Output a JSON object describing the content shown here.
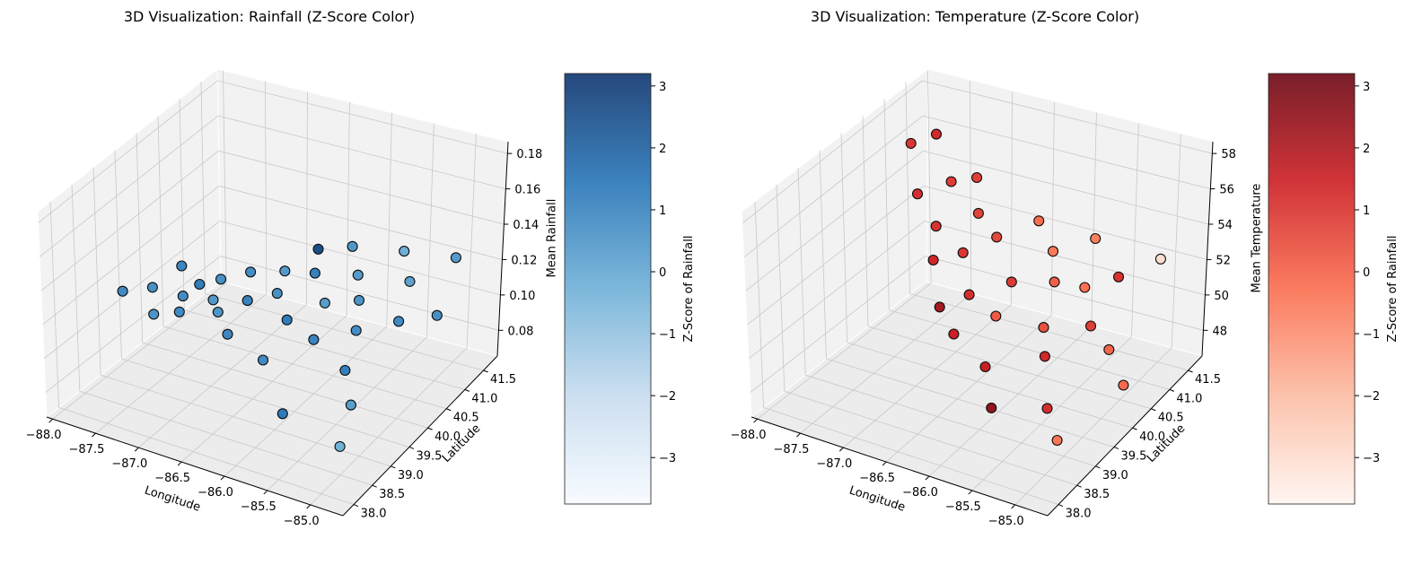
{
  "chart_data": [
    {
      "type": "scatter",
      "title": "3D Visualization: Rainfall (Z-Score Color)",
      "xlabel": "Longitude",
      "ylabel": "Latitude",
      "zlabel": "Mean Rainfall",
      "xticks": [
        "−88.0",
        "−87.5",
        "−87.0",
        "−86.5",
        "−86.0",
        "−85.5",
        "−85.0"
      ],
      "yticks": [
        "38.0",
        "38.5",
        "39.0",
        "39.5",
        "40.0",
        "40.5",
        "41.0",
        "41.5"
      ],
      "zticks": [
        "0.08",
        "0.10",
        "0.12",
        "0.14",
        "0.16",
        "0.18"
      ],
      "xlim": [
        -88.2,
        -84.8
      ],
      "ylim": [
        37.7,
        41.9
      ],
      "zlim": [
        0.065,
        0.19
      ],
      "colorbar": {
        "label": "Z-Score of Rainfall",
        "ticks": [
          "−3",
          "−2",
          "−1",
          "0",
          "1",
          "2",
          "3"
        ],
        "range": [
          -3.75,
          3.2
        ],
        "colormap": "Blues",
        "color_low": "#f7fbff",
        "color_high": "#08306b"
      },
      "pane_color": "#f2f2f2",
      "grid": true,
      "points": [
        {
          "x": -88.1,
          "y": 39.4,
          "z": 0.11,
          "c": 0.9
        },
        {
          "x": -87.9,
          "y": 39.7,
          "z": 0.11,
          "c": 0.7
        },
        {
          "x": -87.8,
          "y": 40.2,
          "z": 0.115,
          "c": 1.0
        },
        {
          "x": -87.7,
          "y": 39.3,
          "z": 0.105,
          "c": 0.6
        },
        {
          "x": -87.6,
          "y": 39.8,
          "z": 0.108,
          "c": 0.8
        },
        {
          "x": -87.5,
          "y": 40.0,
          "z": 0.113,
          "c": 1.3
        },
        {
          "x": -87.5,
          "y": 39.5,
          "z": 0.106,
          "c": 0.9
        },
        {
          "x": -87.4,
          "y": 40.3,
          "z": 0.112,
          "c": 0.7
        },
        {
          "x": -87.3,
          "y": 39.9,
          "z": 0.109,
          "c": 0.5
        },
        {
          "x": -87.2,
          "y": 40.6,
          "z": 0.114,
          "c": 0.8
        },
        {
          "x": -87.1,
          "y": 39.6,
          "z": 0.111,
          "c": 0.6
        },
        {
          "x": -87.0,
          "y": 40.1,
          "z": 0.11,
          "c": 1.1
        },
        {
          "x": -86.9,
          "y": 40.8,
          "z": 0.116,
          "c": 0.4
        },
        {
          "x": -86.9,
          "y": 39.4,
          "z": 0.105,
          "c": 1.0
        },
        {
          "x": -86.8,
          "y": 40.4,
          "z": 0.112,
          "c": 0.7
        },
        {
          "x": -86.7,
          "y": 41.2,
          "z": 0.125,
          "c": 2.6
        },
        {
          "x": -86.6,
          "y": 40.9,
          "z": 0.118,
          "c": 1.2
        },
        {
          "x": -86.5,
          "y": 40.0,
          "z": 0.109,
          "c": 1.3
        },
        {
          "x": -86.4,
          "y": 41.4,
          "z": 0.128,
          "c": 0.5
        },
        {
          "x": -86.4,
          "y": 39.2,
          "z": 0.102,
          "c": 0.9
        },
        {
          "x": -86.3,
          "y": 40.5,
          "z": 0.113,
          "c": 0.3
        },
        {
          "x": -86.2,
          "y": 41.1,
          "z": 0.12,
          "c": 0.4
        },
        {
          "x": -86.1,
          "y": 39.8,
          "z": 0.108,
          "c": 1.1
        },
        {
          "x": -86.0,
          "y": 40.7,
          "z": 0.116,
          "c": 0.6
        },
        {
          "x": -85.9,
          "y": 38.6,
          "z": 0.09,
          "c": 1.4
        },
        {
          "x": -85.9,
          "y": 41.6,
          "z": 0.13,
          "c": -0.2
        },
        {
          "x": -85.8,
          "y": 40.2,
          "z": 0.111,
          "c": 0.8
        },
        {
          "x": -85.7,
          "y": 41.3,
          "z": 0.121,
          "c": 0.2
        },
        {
          "x": -85.6,
          "y": 39.5,
          "z": 0.104,
          "c": 1.2
        },
        {
          "x": -85.5,
          "y": 40.6,
          "z": 0.114,
          "c": 0.9
        },
        {
          "x": -85.4,
          "y": 41.8,
          "z": 0.131,
          "c": 0.4
        },
        {
          "x": -85.3,
          "y": 39.0,
          "z": 0.098,
          "c": 0.3
        },
        {
          "x": -85.2,
          "y": 40.9,
          "z": 0.117,
          "c": 0.7
        },
        {
          "x": -85.1,
          "y": 38.3,
          "z": 0.09,
          "c": -0.3
        }
      ]
    },
    {
      "type": "scatter",
      "title": "3D Visualization: Temperature (Z-Score Color)",
      "xlabel": "Longitude",
      "ylabel": "Latitude",
      "zlabel": "Mean Temperature",
      "xticks": [
        "−88.0",
        "−87.5",
        "−87.0",
        "−86.5",
        "−86.0",
        "−85.5",
        "−85.0"
      ],
      "yticks": [
        "38.0",
        "38.5",
        "39.0",
        "39.5",
        "40.0",
        "40.5",
        "41.0",
        "41.5"
      ],
      "zticks": [
        "48",
        "50",
        "52",
        "54",
        "56",
        "58"
      ],
      "xlim": [
        -88.2,
        -84.8
      ],
      "ylim": [
        37.7,
        41.9
      ],
      "zlim": [
        47,
        59
      ],
      "colorbar": {
        "label": "Z-Score of Rainfall",
        "ticks": [
          "−3",
          "−2",
          "−1",
          "0",
          "1",
          "2",
          "3"
        ],
        "range": [
          -3.75,
          3.2
        ],
        "colormap": "Reds",
        "color_low": "#fff5f0",
        "color_high": "#67000d"
      },
      "pane_color": "#f2f2f2",
      "grid": true,
      "points": [
        {
          "x": -88.1,
          "y": 41.5,
          "z": 56.0,
          "c": 1.0
        },
        {
          "x": -87.9,
          "y": 41.7,
          "z": 56.5,
          "c": 1.3
        },
        {
          "x": -87.8,
          "y": 41.0,
          "z": 54.5,
          "c": 1.2
        },
        {
          "x": -87.6,
          "y": 41.4,
          "z": 54.8,
          "c": 0.9
        },
        {
          "x": -87.5,
          "y": 40.8,
          "z": 53.5,
          "c": 1.1
        },
        {
          "x": -87.4,
          "y": 41.6,
          "z": 55.0,
          "c": 0.8
        },
        {
          "x": -87.3,
          "y": 40.3,
          "z": 52.8,
          "c": 1.4
        },
        {
          "x": -87.2,
          "y": 41.2,
          "z": 54.0,
          "c": 0.7
        },
        {
          "x": -87.1,
          "y": 40.6,
          "z": 53.0,
          "c": 1.0
        },
        {
          "x": -87.0,
          "y": 39.8,
          "z": 51.5,
          "c": 2.2
        },
        {
          "x": -86.9,
          "y": 41.0,
          "z": 53.5,
          "c": 0.6
        },
        {
          "x": -86.8,
          "y": 40.1,
          "z": 52.0,
          "c": 1.2
        },
        {
          "x": -86.7,
          "y": 39.5,
          "z": 51.0,
          "c": 1.5
        },
        {
          "x": -86.6,
          "y": 41.4,
          "z": 54.2,
          "c": -0.2
        },
        {
          "x": -86.5,
          "y": 40.5,
          "z": 52.5,
          "c": 0.9
        },
        {
          "x": -86.4,
          "y": 39.9,
          "z": 51.8,
          "c": 0.2
        },
        {
          "x": -86.3,
          "y": 41.1,
          "z": 53.5,
          "c": -0.5
        },
        {
          "x": -86.2,
          "y": 39.2,
          "z": 50.5,
          "c": 1.6
        },
        {
          "x": -86.1,
          "y": 40.7,
          "z": 52.8,
          "c": 0.1
        },
        {
          "x": -86.0,
          "y": 38.9,
          "z": 49.0,
          "c": 2.5
        },
        {
          "x": -86.0,
          "y": 41.5,
          "z": 54.0,
          "c": -0.6
        },
        {
          "x": -85.9,
          "y": 40.0,
          "z": 51.8,
          "c": 0.4
        },
        {
          "x": -85.8,
          "y": 40.8,
          "z": 52.8,
          "c": -0.3
        },
        {
          "x": -85.7,
          "y": 39.6,
          "z": 51.2,
          "c": 1.3
        },
        {
          "x": -85.6,
          "y": 41.2,
          "z": 53.0,
          "c": 1.1
        },
        {
          "x": -85.5,
          "y": 40.3,
          "z": 52.0,
          "c": 0.8
        },
        {
          "x": -85.4,
          "y": 39.0,
          "z": 49.8,
          "c": 1.2
        },
        {
          "x": -85.3,
          "y": 41.6,
          "z": 53.8,
          "c": -3.0
        },
        {
          "x": -85.2,
          "y": 40.1,
          "z": 51.5,
          "c": 0.0
        },
        {
          "x": -85.1,
          "y": 38.6,
          "z": 49.2,
          "c": -0.4
        },
        {
          "x": -84.9,
          "y": 39.8,
          "z": 50.5,
          "c": -0.1
        }
      ]
    }
  ]
}
